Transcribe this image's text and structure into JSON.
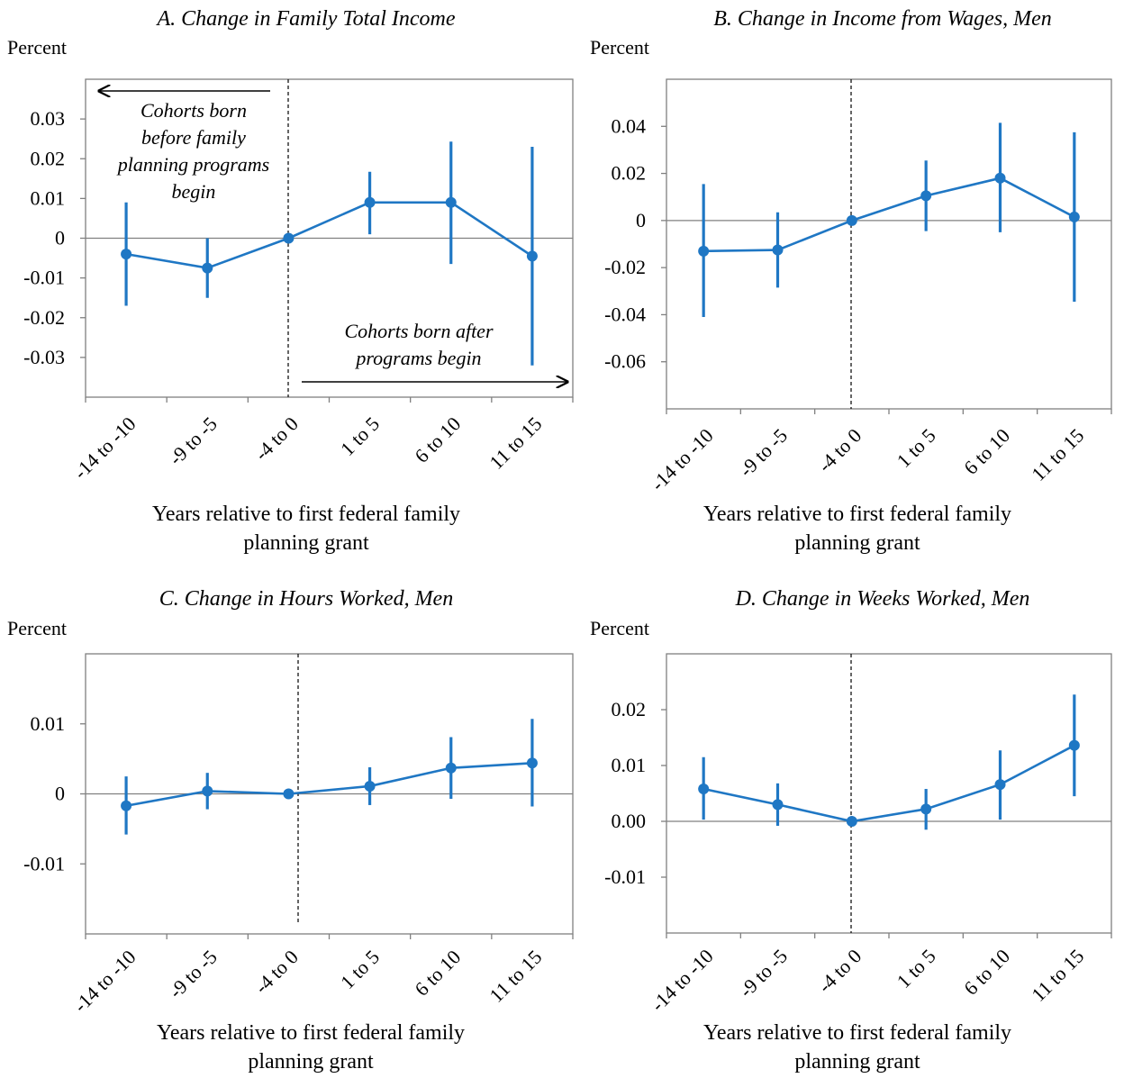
{
  "chart_data": [
    {
      "type": "line",
      "title": "A. Change in Family Total Income",
      "ylabel": "Percent",
      "xlabel_lines": [
        "Years relative to first federal family",
        "planning grant"
      ],
      "categories": [
        "-14 to -10",
        "-9 to -5",
        "-4 to 0",
        "1 to 5",
        "6 to 10",
        "11 to 15"
      ],
      "ylim": [
        -0.04,
        0.04
      ],
      "yticks": [
        0.03,
        0.02,
        0.01,
        0,
        -0.01,
        -0.02,
        -0.03
      ],
      "ytick_labels": [
        "0.03",
        "0.02",
        "0.01",
        "0",
        "-0.01",
        "-0.02",
        "-0.03"
      ],
      "series": [
        {
          "values": [
            -0.004,
            -0.0075,
            0,
            0.009,
            0.009,
            -0.0045
          ],
          "ci_low": [
            -0.017,
            -0.015,
            0,
            0.001,
            -0.0065,
            -0.032
          ],
          "ci_high": [
            0.009,
            0,
            0,
            0.0167,
            0.0243,
            0.023
          ]
        }
      ],
      "annotations": [
        {
          "lines": [
            "Cohorts born",
            "before family",
            "planning programs",
            "begin"
          ],
          "arrow": "left"
        },
        {
          "lines": [
            "Cohorts born after",
            "programs begin"
          ],
          "arrow": "right"
        }
      ]
    },
    {
      "type": "line",
      "title": "B. Change in Income from Wages, Men",
      "ylabel": "Percent",
      "xlabel_lines": [
        "Years relative to first federal family",
        "planning grant"
      ],
      "categories": [
        "-14 to -10",
        "-9 to -5",
        "-4 to 0",
        "1 to 5",
        "6 to 10",
        "11 to 15"
      ],
      "ylim": [
        -0.08,
        0.06
      ],
      "yticks": [
        0.04,
        0.02,
        0,
        -0.02,
        -0.04,
        -0.06
      ],
      "ytick_labels": [
        "0.04",
        "0.02",
        "0",
        "-0.02",
        "-0.04",
        "-0.06"
      ],
      "series": [
        {
          "values": [
            -0.013,
            -0.0125,
            0,
            0.0105,
            0.018,
            0.0015
          ],
          "ci_low": [
            -0.041,
            -0.0285,
            0,
            -0.0045,
            -0.005,
            -0.0345
          ],
          "ci_high": [
            0.0155,
            0.0035,
            0,
            0.0255,
            0.0415,
            0.0375
          ]
        }
      ]
    },
    {
      "type": "line",
      "title": "C. Change in Hours Worked, Men",
      "ylabel": "Percent",
      "xlabel_lines": [
        "Years relative to first federal family",
        "planning grant"
      ],
      "categories": [
        "-14 to -10",
        "-9 to -5",
        "-4 to 0",
        "1 to 5",
        "6 to 10",
        "11 to 15"
      ],
      "ylim": [
        -0.02,
        0.02
      ],
      "yticks": [
        0.01,
        0,
        -0.01
      ],
      "ytick_labels": [
        "0.01",
        "0",
        "-0.01"
      ],
      "series": [
        {
          "values": [
            -0.0017,
            0.0004,
            0,
            0.0011,
            0.0037,
            0.0044
          ],
          "ci_low": [
            -0.0058,
            -0.0022,
            0,
            -0.0016,
            -0.0007,
            -0.0018
          ],
          "ci_high": [
            0.0025,
            0.003,
            0,
            0.0038,
            0.0081,
            0.0107
          ]
        }
      ]
    },
    {
      "type": "line",
      "title": "D. Change in Weeks Worked, Men",
      "ylabel": "Percent",
      "xlabel_lines": [
        "Years relative to first federal family",
        "planning grant"
      ],
      "categories": [
        "-14 to -10",
        "-9 to -5",
        "-4 to 0",
        "1 to 5",
        "6 to 10",
        "11 to 15"
      ],
      "ylim": [
        -0.02,
        0.03
      ],
      "yticks": [
        0.02,
        0.01,
        0,
        -0.01
      ],
      "ytick_labels": [
        "0.02",
        "0.01",
        "0.00",
        "-0.01"
      ],
      "series": [
        {
          "values": [
            0.0058,
            0.003,
            0,
            0.0022,
            0.0066,
            0.0136
          ],
          "ci_low": [
            0.0003,
            -0.0008,
            0,
            -0.0015,
            0.0003,
            0.0045
          ],
          "ci_high": [
            0.0115,
            0.0068,
            0,
            0.0058,
            0.0127,
            0.0227
          ]
        }
      ]
    }
  ],
  "colors": {
    "series": "#1f77c4",
    "axis": "#808080",
    "text": "#000000"
  }
}
